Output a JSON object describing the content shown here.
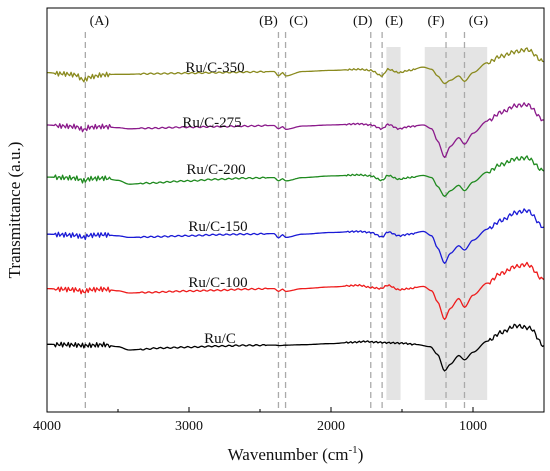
{
  "chart_data": {
    "type": "line",
    "xlabel": "Wavenumber (cm",
    "xlabel_sup": "-1",
    "xlabel_close": ")",
    "ylabel": "Transmittance (a.u.)",
    "xlim": [
      4000,
      500
    ],
    "x_reversed": true,
    "xticks": [
      4000,
      3000,
      2000,
      1000
    ],
    "xtick_labels": [
      "4000",
      "3000",
      "2000",
      "1000"
    ],
    "grid": false,
    "legend": "none",
    "shaded_regions": [
      {
        "from": 1610,
        "to": 1510,
        "color": "#e4e4e4"
      },
      {
        "from": 1340,
        "to": 900,
        "color": "#e4e4e4"
      }
    ],
    "reference_lines": [
      {
        "label": "(A)",
        "x": 3730
      },
      {
        "label": "(B)",
        "x": 2370
      },
      {
        "label": "(C)",
        "x": 2320
      },
      {
        "label": "(D)",
        "x": 1720
      },
      {
        "label": "(E)",
        "x": 1640
      },
      {
        "label": "(F)",
        "x": 1190
      },
      {
        "label": "(G)",
        "x": 1060
      }
    ],
    "series": [
      {
        "name": "Ru/C",
        "color": "#000000",
        "offset": 0,
        "points": [
          [
            4000,
            0.52
          ],
          [
            3900,
            0.5
          ],
          [
            3800,
            0.46
          ],
          [
            3740,
            0.4
          ],
          [
            3700,
            0.42
          ],
          [
            3600,
            0.48
          ],
          [
            3500,
            0.3
          ],
          [
            3420,
            0.0
          ],
          [
            3350,
            0.05
          ],
          [
            3200,
            0.18
          ],
          [
            3000,
            0.26
          ],
          [
            2800,
            0.35
          ],
          [
            2600,
            0.42
          ],
          [
            2400,
            0.45
          ],
          [
            2360,
            0.4
          ],
          [
            2320,
            0.44
          ],
          [
            2200,
            0.48
          ],
          [
            2000,
            0.58
          ],
          [
            1850,
            0.7
          ],
          [
            1750,
            0.78
          ],
          [
            1700,
            0.72
          ],
          [
            1600,
            0.66
          ],
          [
            1500,
            0.62
          ],
          [
            1400,
            0.5
          ],
          [
            1300,
            0.3
          ],
          [
            1250,
            -0.4
          ],
          [
            1200,
            -1.9
          ],
          [
            1160,
            -1.3
          ],
          [
            1100,
            -0.5
          ],
          [
            1060,
            -0.9
          ],
          [
            1000,
            -0.2
          ],
          [
            900,
            0.8
          ],
          [
            800,
            1.6
          ],
          [
            700,
            2.2
          ],
          [
            600,
            2.0
          ],
          [
            500,
            0.4
          ]
        ]
      },
      {
        "name": "Ru/C-100",
        "color": "#ee1c1c",
        "offset": 1,
        "points": [
          [
            4000,
            0.4
          ],
          [
            3900,
            0.35
          ],
          [
            3800,
            0.3
          ],
          [
            3740,
            0.1
          ],
          [
            3700,
            0.3
          ],
          [
            3600,
            0.35
          ],
          [
            3500,
            0.2
          ],
          [
            3420,
            0.0
          ],
          [
            3300,
            0.05
          ],
          [
            3000,
            0.18
          ],
          [
            2800,
            0.25
          ],
          [
            2600,
            0.35
          ],
          [
            2400,
            0.4
          ],
          [
            2370,
            0.15
          ],
          [
            2340,
            0.35
          ],
          [
            2320,
            0.15
          ],
          [
            2200,
            0.4
          ],
          [
            2000,
            0.55
          ],
          [
            1800,
            0.7
          ],
          [
            1720,
            0.5
          ],
          [
            1650,
            0.4
          ],
          [
            1600,
            0.7
          ],
          [
            1520,
            0.3
          ],
          [
            1450,
            0.4
          ],
          [
            1350,
            0.6
          ],
          [
            1290,
            0.2
          ],
          [
            1250,
            -0.8
          ],
          [
            1200,
            -2.4
          ],
          [
            1160,
            -1.4
          ],
          [
            1100,
            -0.5
          ],
          [
            1060,
            -1.3
          ],
          [
            1000,
            -0.2
          ],
          [
            900,
            0.9
          ],
          [
            800,
            1.8
          ],
          [
            700,
            2.4
          ],
          [
            620,
            2.6
          ],
          [
            500,
            1.2
          ]
        ]
      },
      {
        "name": "Ru/C-150",
        "color": "#1a1ad6",
        "offset": 2,
        "points": [
          [
            4000,
            0.35
          ],
          [
            3900,
            0.3
          ],
          [
            3800,
            0.25
          ],
          [
            3740,
            0.05
          ],
          [
            3700,
            0.25
          ],
          [
            3600,
            0.3
          ],
          [
            3500,
            0.2
          ],
          [
            3420,
            0.05
          ],
          [
            3300,
            0.1
          ],
          [
            3000,
            0.2
          ],
          [
            2800,
            0.3
          ],
          [
            2600,
            0.35
          ],
          [
            2400,
            0.4
          ],
          [
            2370,
            0.0
          ],
          [
            2340,
            0.3
          ],
          [
            2320,
            0.05
          ],
          [
            2200,
            0.35
          ],
          [
            2000,
            0.5
          ],
          [
            1800,
            0.6
          ],
          [
            1720,
            0.5
          ],
          [
            1640,
            0.1
          ],
          [
            1600,
            0.55
          ],
          [
            1520,
            0.2
          ],
          [
            1450,
            0.35
          ],
          [
            1350,
            0.6
          ],
          [
            1290,
            0.2
          ],
          [
            1250,
            -0.9
          ],
          [
            1200,
            -2.3
          ],
          [
            1160,
            -1.4
          ],
          [
            1100,
            -0.7
          ],
          [
            1060,
            -1.1
          ],
          [
            1000,
            -0.2
          ],
          [
            900,
            0.8
          ],
          [
            800,
            1.6
          ],
          [
            700,
            2.3
          ],
          [
            620,
            2.5
          ],
          [
            500,
            1.0
          ]
        ]
      },
      {
        "name": "Ru/C-200",
        "color": "#1f8a1f",
        "offset": 3,
        "points": [
          [
            4000,
            0.45
          ],
          [
            3900,
            0.4
          ],
          [
            3800,
            0.35
          ],
          [
            3740,
            0.1
          ],
          [
            3700,
            0.3
          ],
          [
            3600,
            0.35
          ],
          [
            3500,
            0.15
          ],
          [
            3420,
            -0.2
          ],
          [
            3300,
            -0.1
          ],
          [
            3000,
            0.1
          ],
          [
            2800,
            0.25
          ],
          [
            2600,
            0.35
          ],
          [
            2400,
            0.4
          ],
          [
            2370,
            0.1
          ],
          [
            2340,
            0.3
          ],
          [
            2320,
            0.1
          ],
          [
            2200,
            0.4
          ],
          [
            2000,
            0.55
          ],
          [
            1800,
            0.65
          ],
          [
            1720,
            0.55
          ],
          [
            1640,
            0.15
          ],
          [
            1600,
            0.6
          ],
          [
            1520,
            0.25
          ],
          [
            1450,
            0.4
          ],
          [
            1350,
            0.6
          ],
          [
            1290,
            0.4
          ],
          [
            1250,
            -0.4
          ],
          [
            1200,
            -1.3
          ],
          [
            1160,
            -0.8
          ],
          [
            1100,
            -0.3
          ],
          [
            1060,
            -0.8
          ],
          [
            1000,
            0.0
          ],
          [
            900,
            0.9
          ],
          [
            800,
            1.6
          ],
          [
            700,
            2.1
          ],
          [
            620,
            2.2
          ],
          [
            500,
            1.0
          ]
        ]
      },
      {
        "name": "Ru/C-275",
        "color": "#8b1a8b",
        "offset": 4,
        "points": [
          [
            4000,
            0.55
          ],
          [
            3900,
            0.45
          ],
          [
            3800,
            0.4
          ],
          [
            3740,
            0.1
          ],
          [
            3700,
            0.35
          ],
          [
            3600,
            0.4
          ],
          [
            3500,
            0.3
          ],
          [
            3420,
            0.2
          ],
          [
            3300,
            0.25
          ],
          [
            3000,
            0.35
          ],
          [
            2800,
            0.4
          ],
          [
            2600,
            0.45
          ],
          [
            2400,
            0.5
          ],
          [
            2370,
            0.2
          ],
          [
            2340,
            0.4
          ],
          [
            2320,
            0.15
          ],
          [
            2200,
            0.45
          ],
          [
            2000,
            0.55
          ],
          [
            1800,
            0.65
          ],
          [
            1720,
            0.55
          ],
          [
            1640,
            0.2
          ],
          [
            1600,
            0.6
          ],
          [
            1520,
            0.2
          ],
          [
            1450,
            0.4
          ],
          [
            1350,
            0.55
          ],
          [
            1290,
            0.2
          ],
          [
            1250,
            -0.9
          ],
          [
            1200,
            -2.4
          ],
          [
            1160,
            -1.4
          ],
          [
            1100,
            -0.6
          ],
          [
            1060,
            -1.2
          ],
          [
            1000,
            -0.2
          ],
          [
            900,
            0.9
          ],
          [
            800,
            1.7
          ],
          [
            700,
            2.3
          ],
          [
            620,
            2.4
          ],
          [
            500,
            1.0
          ]
        ]
      },
      {
        "name": "Ru/C-350",
        "color": "#8a8a1e",
        "offset": 5,
        "points": [
          [
            4000,
            0.4
          ],
          [
            3900,
            0.3
          ],
          [
            3800,
            0.2
          ],
          [
            3740,
            -0.3
          ],
          [
            3700,
            0.0
          ],
          [
            3600,
            0.2
          ],
          [
            3500,
            0.25
          ],
          [
            3420,
            0.25
          ],
          [
            3300,
            0.3
          ],
          [
            3000,
            0.35
          ],
          [
            2800,
            0.4
          ],
          [
            2600,
            0.45
          ],
          [
            2400,
            0.5
          ],
          [
            2370,
            0.1
          ],
          [
            2340,
            0.4
          ],
          [
            2320,
            0.1
          ],
          [
            2200,
            0.5
          ],
          [
            2000,
            0.6
          ],
          [
            1800,
            0.7
          ],
          [
            1720,
            0.6
          ],
          [
            1640,
            0.1
          ],
          [
            1600,
            0.7
          ],
          [
            1520,
            0.4
          ],
          [
            1450,
            0.6
          ],
          [
            1350,
            0.9
          ],
          [
            1290,
            0.7
          ],
          [
            1250,
            0.1
          ],
          [
            1200,
            -0.6
          ],
          [
            1160,
            -0.3
          ],
          [
            1100,
            0.1
          ],
          [
            1060,
            -0.4
          ],
          [
            1000,
            0.4
          ],
          [
            900,
            1.3
          ],
          [
            800,
            1.9
          ],
          [
            700,
            2.3
          ],
          [
            620,
            2.5
          ],
          [
            500,
            1.4
          ]
        ]
      }
    ]
  }
}
